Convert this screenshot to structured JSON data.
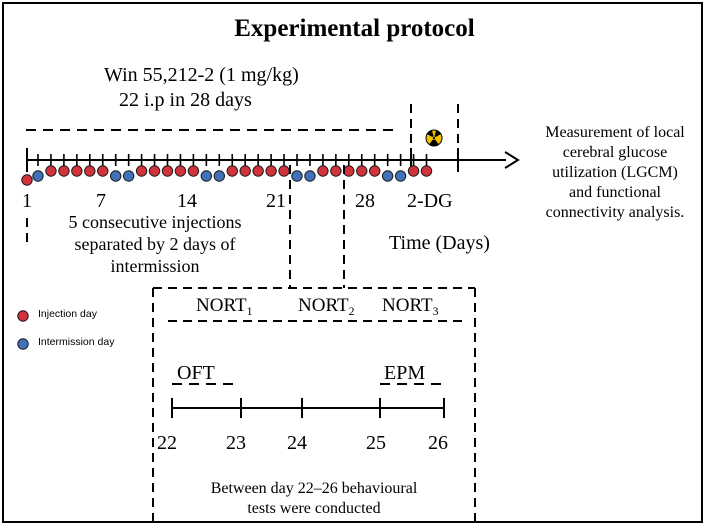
{
  "title": "Experimental protocol",
  "drug": {
    "line1": "Win 55,212-2 (1 mg/kg)",
    "line2": "22 i.p in 28 days"
  },
  "timeline": {
    "injection_color": "#d1323c",
    "intermission_color": "#3f72b8",
    "day_labels": [
      "1",
      "7",
      "14",
      "21",
      "28"
    ],
    "dg_label": "2-DG",
    "axis_label": "Time (Days)",
    "schedule_note": [
      "5 consecutive injections",
      "separated by 2 days of",
      "intermission"
    ],
    "marker_pattern": [
      "intermission",
      "injection",
      "injection",
      "injection",
      "injection",
      "injection",
      "intermission",
      "intermission",
      "injection",
      "injection",
      "injection",
      "injection",
      "injection",
      "intermission",
      "intermission",
      "injection",
      "injection",
      "injection",
      "injection",
      "injection",
      "intermission",
      "intermission",
      "injection",
      "injection",
      "injection",
      "injection",
      "injection",
      "intermission",
      "intermission",
      "injection",
      "injection"
    ]
  },
  "measurement": [
    "Measurement of local",
    "cerebral glucose",
    "utilization (LGCM)",
    "and functional",
    "connectivity analysis."
  ],
  "legend": {
    "injection_label": "Injection day",
    "intermission_label": "Intermission day"
  },
  "behaviour": {
    "nort": [
      {
        "base": "NORT",
        "sub": "1"
      },
      {
        "base": "NORT",
        "sub": "2"
      },
      {
        "base": "NORT",
        "sub": "3"
      }
    ],
    "oft": "OFT",
    "epm": "EPM",
    "days": [
      "22",
      "23",
      "24",
      "25",
      "26"
    ],
    "note": [
      "Between day 22–26 behavioural",
      "tests were conducted"
    ]
  }
}
